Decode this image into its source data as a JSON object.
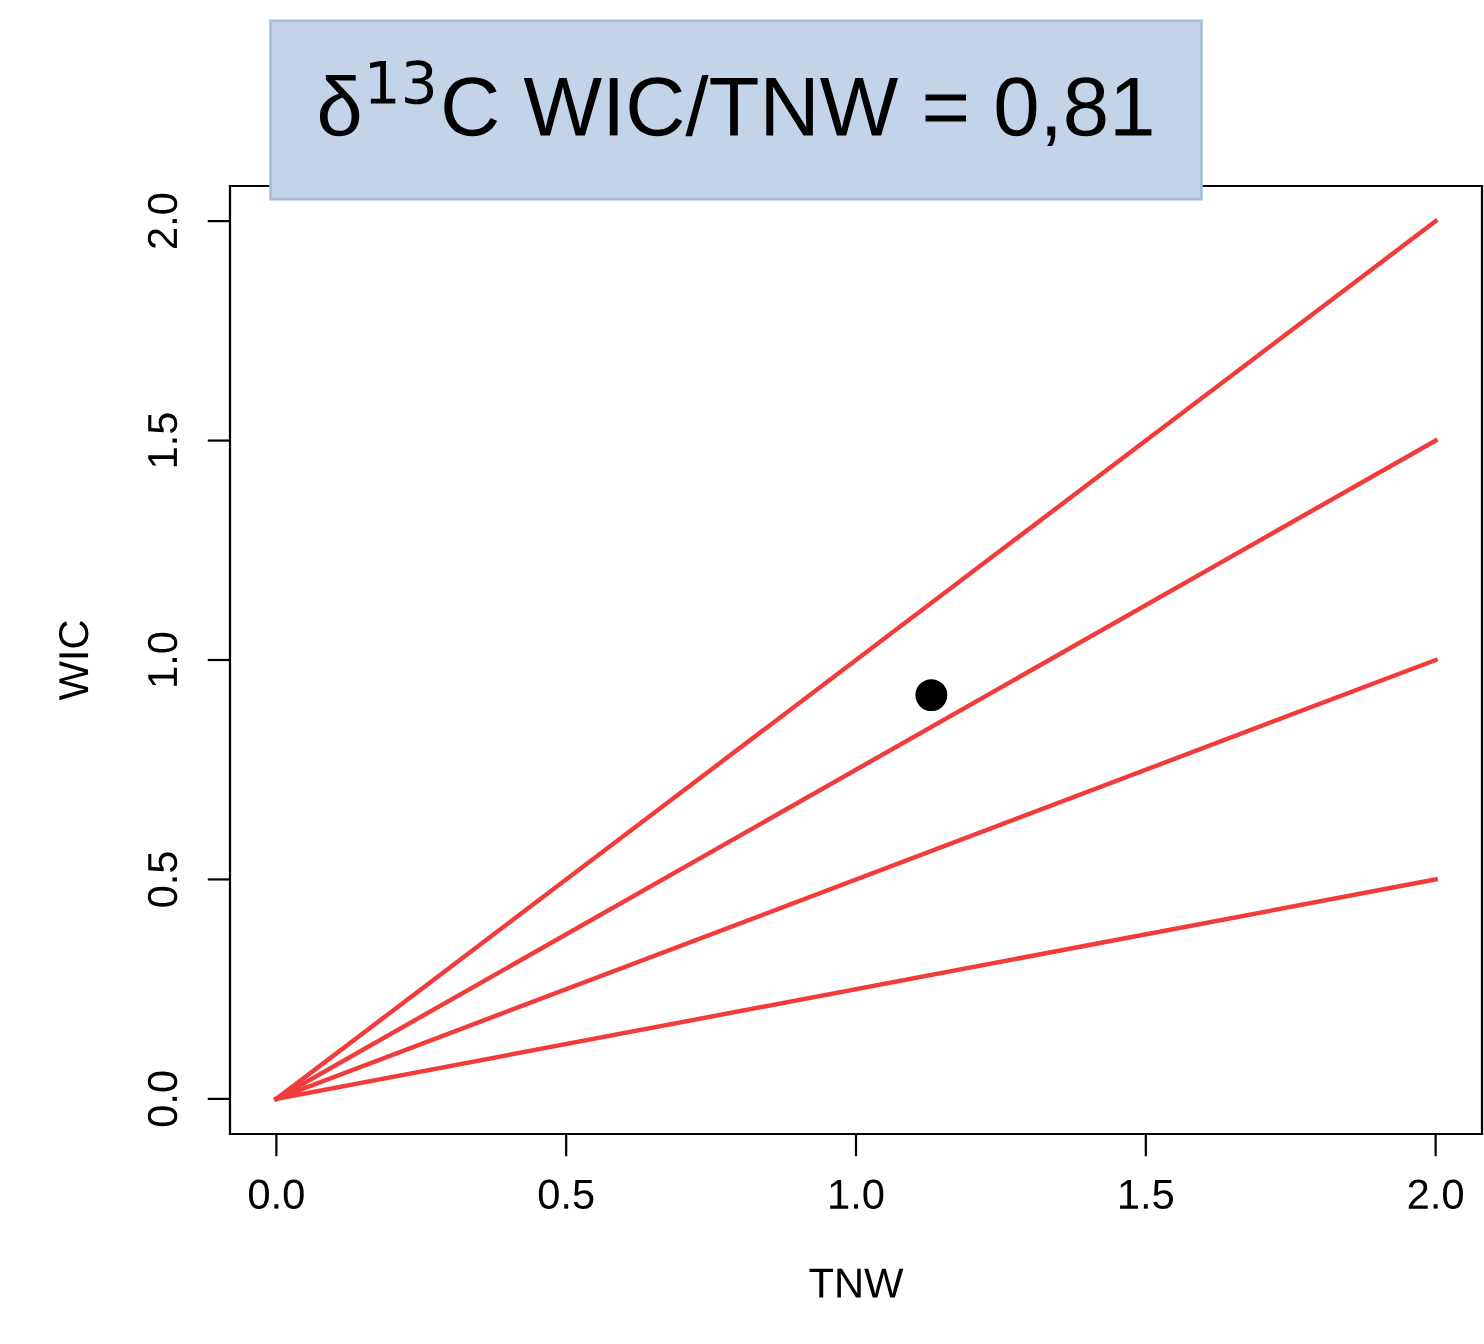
{
  "chart_data": {
    "type": "line",
    "title": "δ$^{13}$C WIC/TNW = 0,81",
    "xlabel": "TNW",
    "ylabel": "WIC",
    "xlim": [
      -0.08,
      2.08
    ],
    "ylim": [
      -0.08,
      2.08
    ],
    "xticks": [
      {
        "value": 0,
        "label": "0.0"
      },
      0.5,
      {
        "value": 1,
        "label": "1.0"
      },
      1.5,
      {
        "value": 2,
        "label": "2.0"
      }
    ],
    "yticks": [
      {
        "value": 0,
        "label": "0.0"
      },
      0.5,
      {
        "value": 1,
        "label": "1.0"
      },
      1.5,
      {
        "value": 2,
        "label": "2.0"
      }
    ],
    "grid": false,
    "legend": false,
    "marker": "none",
    "line_style": "solid",
    "series": [
      {
        "color": "#f23c3c",
        "x": [
          0,
          2
        ],
        "values": [
          0,
          2
        ]
      },
      {
        "color": "#f23c3c",
        "x": [
          0,
          2
        ],
        "values": [
          0,
          1.5
        ]
      },
      {
        "color": "#f23c3c",
        "x": [
          0,
          2
        ],
        "values": [
          0,
          1
        ]
      },
      {
        "color": "#f23c3c",
        "x": [
          0,
          2
        ],
        "values": [
          0,
          0.5
        ]
      },
      {
        "type": "scatter",
        "color": "#000000",
        "marker": "circle",
        "x": [
          1.13
        ],
        "values": [
          0.92
        ]
      }
    ]
  }
}
